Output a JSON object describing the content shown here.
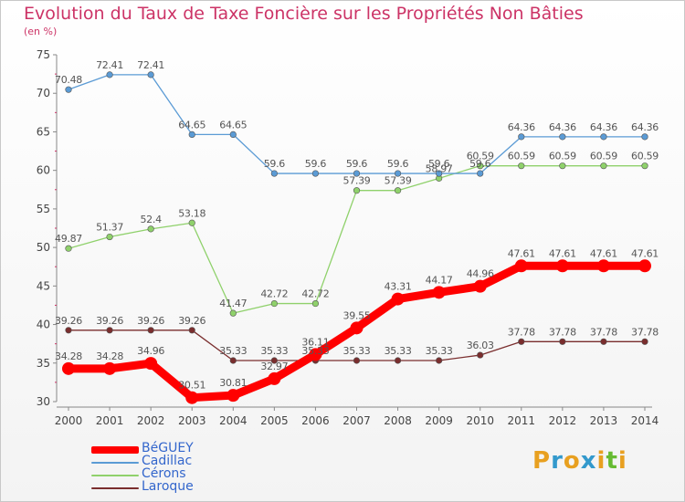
{
  "title": "Evolution du Taux de Taxe Foncière sur les Propriétés Non Bâties",
  "subtitle": "(en %)",
  "logo": "Proxiti",
  "chart_data": {
    "type": "line",
    "x": [
      "2000",
      "2001",
      "2002",
      "2003",
      "2004",
      "2005",
      "2006",
      "2007",
      "2008",
      "2009",
      "2010",
      "2011",
      "2012",
      "2013",
      "2014"
    ],
    "ylim": [
      30,
      75
    ],
    "yticks": [
      30,
      35,
      40,
      45,
      50,
      55,
      60,
      65,
      70,
      75
    ],
    "grid": false,
    "legend_position": "bottom-left",
    "series": [
      {
        "name": "BéGUEY",
        "color": "#ff0000",
        "values": [
          34.28,
          34.28,
          34.96,
          30.51,
          30.81,
          32.97,
          36.11,
          39.55,
          43.31,
          44.17,
          44.96,
          47.61,
          47.61,
          47.61,
          47.61
        ],
        "labels": [
          "34.28",
          "34.28",
          "34.96",
          "30.51",
          "30.81",
          "32.97",
          "36.11",
          "39.55",
          "43.31",
          "44.17",
          "44.96",
          "47.61",
          "47.61",
          "47.61",
          "47.61"
        ]
      },
      {
        "name": "Cadillac",
        "color": "#5b9bd5",
        "values": [
          70.48,
          72.41,
          72.41,
          64.65,
          64.65,
          59.6,
          59.6,
          59.6,
          59.6,
          59.6,
          59.6,
          64.36,
          64.36,
          64.36,
          64.36
        ],
        "labels": [
          "70.48",
          "72.41",
          "72.41",
          "64.65",
          "64.65",
          "59.6",
          "59.6",
          "59.6",
          "59.6",
          "59.6",
          "59.6",
          "64.36",
          "64.36",
          "64.36",
          "64.36"
        ]
      },
      {
        "name": "Cérons",
        "color": "#8fd16b",
        "values": [
          49.87,
          51.37,
          52.4,
          53.18,
          41.47,
          42.72,
          42.72,
          57.39,
          57.39,
          58.97,
          60.59,
          60.59,
          60.59,
          60.59,
          60.59
        ],
        "labels": [
          "49.87",
          "51.37",
          "52.4",
          "53.18",
          "41.47",
          "42.72",
          "42.72",
          "57.39",
          "57.39",
          "58.97",
          "60.59",
          "60.59",
          "60.59",
          "60.59",
          "60.59"
        ]
      },
      {
        "name": "Laroque",
        "color": "#7a2e2e",
        "values": [
          39.26,
          39.26,
          39.26,
          39.26,
          35.33,
          35.33,
          35.33,
          35.33,
          35.33,
          35.33,
          36.03,
          37.78,
          37.78,
          37.78,
          37.78
        ],
        "labels": [
          "39.26",
          "39.26",
          "39.26",
          "39.26",
          "35.33",
          "35.33",
          "35.33",
          "35.33",
          "35.33",
          "35.33",
          "36.03",
          "37.78",
          "37.78",
          "37.78",
          "37.78"
        ]
      }
    ]
  }
}
